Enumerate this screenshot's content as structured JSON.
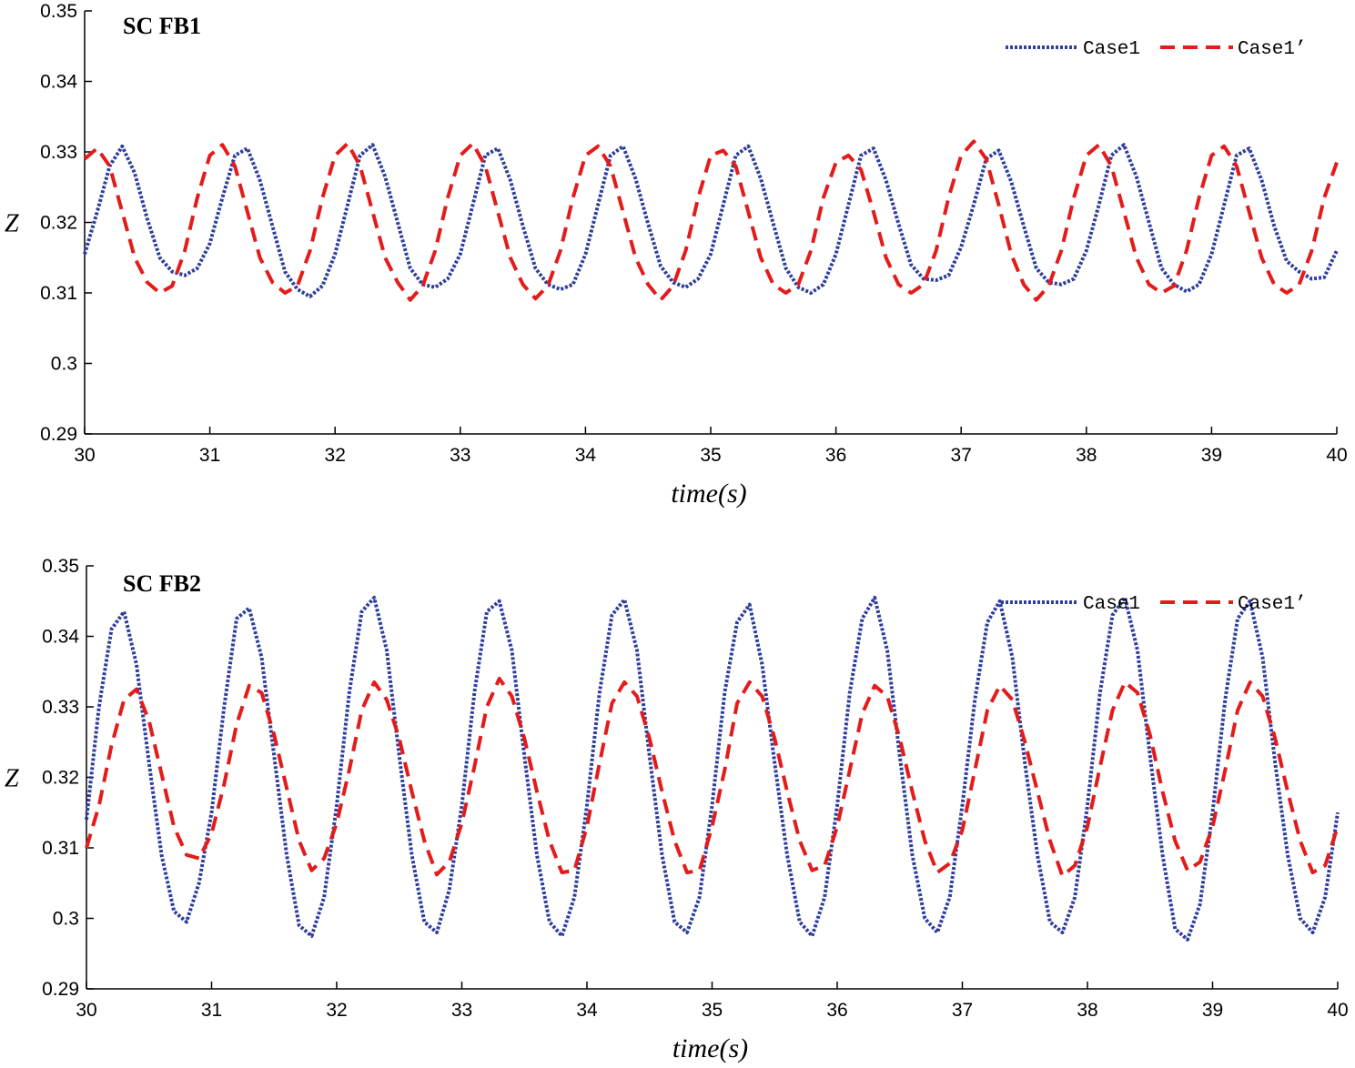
{
  "chart_data": [
    {
      "type": "line",
      "title": "SC FB1",
      "xlabel": "time(s)",
      "ylabel": "Z",
      "xlim": [
        30,
        40
      ],
      "ylim": [
        0.29,
        0.35
      ],
      "xticks": [
        "30",
        "31",
        "32",
        "33",
        "34",
        "35",
        "36",
        "37",
        "38",
        "39",
        "40"
      ],
      "yticks": [
        "0.29",
        "0.3",
        "0.31",
        "0.32",
        "0.33",
        "0.34",
        "0.35"
      ],
      "legend_position": "top-right",
      "series": [
        {
          "name": "Case1",
          "color": "#2e3e9c",
          "style": "dotted",
          "x": [
            30,
            30.1,
            30.2,
            30.3,
            30.4,
            30.5,
            30.6,
            30.7,
            30.8,
            30.9,
            31,
            31.1,
            31.2,
            31.3,
            31.4,
            31.5,
            31.6,
            31.7,
            31.8,
            31.9,
            32,
            32.1,
            32.2,
            32.3,
            32.4,
            32.5,
            32.6,
            32.7,
            32.8,
            32.9,
            33,
            33.1,
            33.2,
            33.3,
            33.4,
            33.5,
            33.6,
            33.7,
            33.8,
            33.9,
            34,
            34.1,
            34.2,
            34.3,
            34.4,
            34.5,
            34.6,
            34.7,
            34.8,
            34.9,
            35,
            35.1,
            35.2,
            35.3,
            35.4,
            35.5,
            35.6,
            35.7,
            35.8,
            35.9,
            36,
            36.1,
            36.2,
            36.3,
            36.4,
            36.5,
            36.6,
            36.7,
            36.8,
            36.9,
            37,
            37.1,
            37.2,
            37.3,
            37.4,
            37.5,
            37.6,
            37.7,
            37.8,
            37.9,
            38,
            38.1,
            38.2,
            38.3,
            38.4,
            38.5,
            38.6,
            38.7,
            38.8,
            38.9,
            39,
            39.1,
            39.2,
            39.3,
            39.4,
            39.5,
            39.6,
            39.7,
            39.8,
            39.9,
            40
          ],
          "y": [
            0.3155,
            0.3215,
            0.328,
            0.3308,
            0.327,
            0.3205,
            0.315,
            0.313,
            0.3125,
            0.3135,
            0.317,
            0.3235,
            0.3295,
            0.3305,
            0.326,
            0.3195,
            0.313,
            0.3105,
            0.3095,
            0.311,
            0.3155,
            0.3225,
            0.3295,
            0.331,
            0.3265,
            0.32,
            0.3135,
            0.3112,
            0.3108,
            0.312,
            0.3155,
            0.3225,
            0.3295,
            0.3305,
            0.326,
            0.3195,
            0.3135,
            0.3112,
            0.3105,
            0.3112,
            0.3155,
            0.3225,
            0.3295,
            0.3308,
            0.3262,
            0.3198,
            0.3138,
            0.3115,
            0.3108,
            0.312,
            0.3155,
            0.3225,
            0.3295,
            0.3308,
            0.3262,
            0.3198,
            0.3135,
            0.3108,
            0.31,
            0.3112,
            0.3155,
            0.3225,
            0.3295,
            0.3305,
            0.326,
            0.3198,
            0.314,
            0.312,
            0.3118,
            0.3125,
            0.3165,
            0.3225,
            0.329,
            0.3302,
            0.3258,
            0.3195,
            0.3135,
            0.3115,
            0.3112,
            0.312,
            0.316,
            0.3225,
            0.3295,
            0.331,
            0.3265,
            0.32,
            0.3135,
            0.3112,
            0.3102,
            0.3112,
            0.3155,
            0.3225,
            0.3295,
            0.3305,
            0.326,
            0.3195,
            0.3145,
            0.313,
            0.312,
            0.3122,
            0.316
          ]
        },
        {
          "name": "Case1’",
          "color": "#e41b1b",
          "style": "dashed",
          "x": [
            30,
            30.1,
            30.2,
            30.3,
            30.4,
            30.5,
            30.6,
            30.7,
            30.8,
            30.9,
            31,
            31.1,
            31.2,
            31.3,
            31.4,
            31.5,
            31.6,
            31.7,
            31.8,
            31.9,
            32,
            32.1,
            32.2,
            32.3,
            32.4,
            32.5,
            32.6,
            32.7,
            32.8,
            32.9,
            33,
            33.1,
            33.2,
            33.3,
            33.4,
            33.5,
            33.6,
            33.7,
            33.8,
            33.9,
            34,
            34.1,
            34.2,
            34.3,
            34.4,
            34.5,
            34.6,
            34.7,
            34.8,
            34.9,
            35,
            35.1,
            35.2,
            35.3,
            35.4,
            35.5,
            35.6,
            35.7,
            35.8,
            35.9,
            36,
            36.1,
            36.2,
            36.3,
            36.4,
            36.5,
            36.6,
            36.7,
            36.8,
            36.9,
            37,
            37.1,
            37.2,
            37.3,
            37.4,
            37.5,
            37.6,
            37.7,
            37.8,
            37.9,
            38,
            38.1,
            38.2,
            38.3,
            38.4,
            38.5,
            38.6,
            38.7,
            38.8,
            38.9,
            39,
            39.1,
            39.2,
            39.3,
            39.4,
            39.5,
            39.6,
            39.7,
            39.8,
            39.9,
            40
          ],
          "y": [
            0.329,
            0.3305,
            0.328,
            0.3215,
            0.315,
            0.3115,
            0.31,
            0.311,
            0.316,
            0.3235,
            0.3295,
            0.331,
            0.328,
            0.3215,
            0.315,
            0.3115,
            0.31,
            0.311,
            0.316,
            0.3235,
            0.3295,
            0.3312,
            0.328,
            0.3215,
            0.315,
            0.3115,
            0.309,
            0.311,
            0.316,
            0.3235,
            0.3295,
            0.3312,
            0.328,
            0.3215,
            0.315,
            0.3112,
            0.3092,
            0.311,
            0.316,
            0.3235,
            0.3295,
            0.3308,
            0.328,
            0.3215,
            0.315,
            0.3112,
            0.309,
            0.311,
            0.316,
            0.3235,
            0.3295,
            0.3302,
            0.328,
            0.3215,
            0.315,
            0.3112,
            0.31,
            0.3112,
            0.316,
            0.3235,
            0.3285,
            0.3295,
            0.3275,
            0.3215,
            0.315,
            0.3112,
            0.31,
            0.3112,
            0.316,
            0.3235,
            0.3295,
            0.3315,
            0.329,
            0.3225,
            0.3155,
            0.3112,
            0.309,
            0.311,
            0.316,
            0.3235,
            0.3295,
            0.331,
            0.328,
            0.3215,
            0.315,
            0.3112,
            0.31,
            0.311,
            0.316,
            0.3235,
            0.3295,
            0.3308,
            0.328,
            0.3215,
            0.315,
            0.3112,
            0.31,
            0.3112,
            0.316,
            0.3235,
            0.3285
          ]
        }
      ]
    },
    {
      "type": "line",
      "title": "SC FB2",
      "xlabel": "time(s)",
      "ylabel": "Z",
      "xlim": [
        30,
        40
      ],
      "ylim": [
        0.29,
        0.35
      ],
      "xticks": [
        "30",
        "31",
        "32",
        "33",
        "34",
        "35",
        "36",
        "37",
        "38",
        "39",
        "40"
      ],
      "yticks": [
        "0.29",
        "0.3",
        "0.31",
        "0.32",
        "0.33",
        "0.34",
        "0.35"
      ],
      "legend_position": "top-right",
      "series": [
        {
          "name": "Case1",
          "color": "#2e3e9c",
          "style": "dotted",
          "x": [
            30,
            30.1,
            30.2,
            30.3,
            30.4,
            30.5,
            30.6,
            30.7,
            30.8,
            30.9,
            31,
            31.1,
            31.2,
            31.3,
            31.4,
            31.5,
            31.6,
            31.7,
            31.8,
            31.9,
            32,
            32.1,
            32.2,
            32.3,
            32.4,
            32.5,
            32.6,
            32.7,
            32.8,
            32.9,
            33,
            33.1,
            33.2,
            33.3,
            33.4,
            33.5,
            33.6,
            33.7,
            33.8,
            33.9,
            34,
            34.1,
            34.2,
            34.3,
            34.4,
            34.5,
            34.6,
            34.7,
            34.8,
            34.9,
            35,
            35.1,
            35.2,
            35.3,
            35.4,
            35.5,
            35.6,
            35.7,
            35.8,
            35.9,
            36,
            36.1,
            36.2,
            36.3,
            36.4,
            36.5,
            36.6,
            36.7,
            36.8,
            36.9,
            37,
            37.1,
            37.2,
            37.3,
            37.4,
            37.5,
            37.6,
            37.7,
            37.8,
            37.9,
            38,
            38.1,
            38.2,
            38.3,
            38.4,
            38.5,
            38.6,
            38.7,
            38.8,
            38.9,
            39,
            39.1,
            39.2,
            39.3,
            39.4,
            39.5,
            39.6,
            39.7,
            39.8,
            39.9,
            40
          ],
          "y": [
            0.314,
            0.33,
            0.341,
            0.3435,
            0.336,
            0.322,
            0.309,
            0.301,
            0.2995,
            0.305,
            0.315,
            0.33,
            0.3425,
            0.344,
            0.337,
            0.323,
            0.309,
            0.299,
            0.2975,
            0.303,
            0.316,
            0.332,
            0.3435,
            0.3455,
            0.338,
            0.323,
            0.309,
            0.2995,
            0.298,
            0.304,
            0.316,
            0.332,
            0.3435,
            0.345,
            0.338,
            0.323,
            0.309,
            0.2995,
            0.2975,
            0.303,
            0.316,
            0.332,
            0.343,
            0.3452,
            0.338,
            0.323,
            0.309,
            0.2995,
            0.298,
            0.303,
            0.316,
            0.332,
            0.342,
            0.3445,
            0.336,
            0.322,
            0.309,
            0.2995,
            0.2975,
            0.303,
            0.316,
            0.332,
            0.3425,
            0.3455,
            0.338,
            0.323,
            0.309,
            0.3,
            0.298,
            0.303,
            0.316,
            0.331,
            0.342,
            0.345,
            0.337,
            0.322,
            0.309,
            0.2995,
            0.298,
            0.303,
            0.316,
            0.332,
            0.343,
            0.3455,
            0.338,
            0.323,
            0.309,
            0.2985,
            0.297,
            0.302,
            0.315,
            0.331,
            0.3425,
            0.345,
            0.337,
            0.322,
            0.309,
            0.3,
            0.298,
            0.303,
            0.315
          ]
        },
        {
          "name": "Case1’",
          "color": "#e41b1b",
          "style": "dashed",
          "x": [
            30,
            30.1,
            30.2,
            30.3,
            30.4,
            30.5,
            30.6,
            30.7,
            30.8,
            30.9,
            31,
            31.1,
            31.2,
            31.3,
            31.4,
            31.5,
            31.6,
            31.7,
            31.8,
            31.9,
            32,
            32.1,
            32.2,
            32.3,
            32.4,
            32.5,
            32.6,
            32.7,
            32.8,
            32.9,
            33,
            33.1,
            33.2,
            33.3,
            33.4,
            33.5,
            33.6,
            33.7,
            33.8,
            33.9,
            34,
            34.1,
            34.2,
            34.3,
            34.4,
            34.5,
            34.6,
            34.7,
            34.8,
            34.9,
            35,
            35.1,
            35.2,
            35.3,
            35.4,
            35.5,
            35.6,
            35.7,
            35.8,
            35.9,
            36,
            36.1,
            36.2,
            36.3,
            36.4,
            36.5,
            36.6,
            36.7,
            36.8,
            36.9,
            37,
            37.1,
            37.2,
            37.3,
            37.4,
            37.5,
            37.6,
            37.7,
            37.8,
            37.9,
            38,
            38.1,
            38.2,
            38.3,
            38.4,
            38.5,
            38.6,
            38.7,
            38.8,
            38.9,
            39,
            39.1,
            39.2,
            39.3,
            39.4,
            39.5,
            39.6,
            39.7,
            39.8,
            39.9,
            40
          ],
          "y": [
            0.31,
            0.316,
            0.3245,
            0.331,
            0.3325,
            0.328,
            0.3205,
            0.313,
            0.309,
            0.3085,
            0.312,
            0.319,
            0.3275,
            0.333,
            0.332,
            0.326,
            0.3185,
            0.311,
            0.3068,
            0.3085,
            0.3135,
            0.321,
            0.3295,
            0.3335,
            0.331,
            0.3255,
            0.318,
            0.311,
            0.3062,
            0.308,
            0.3135,
            0.3215,
            0.33,
            0.334,
            0.3315,
            0.3255,
            0.318,
            0.311,
            0.3065,
            0.3068,
            0.313,
            0.322,
            0.3305,
            0.3335,
            0.3315,
            0.3255,
            0.318,
            0.311,
            0.3065,
            0.3068,
            0.313,
            0.321,
            0.3305,
            0.3335,
            0.3315,
            0.3255,
            0.318,
            0.311,
            0.3068,
            0.3075,
            0.313,
            0.321,
            0.329,
            0.333,
            0.3315,
            0.3255,
            0.318,
            0.311,
            0.3065,
            0.3078,
            0.3125,
            0.321,
            0.3295,
            0.333,
            0.331,
            0.325,
            0.318,
            0.311,
            0.306,
            0.3075,
            0.313,
            0.3215,
            0.3295,
            0.3335,
            0.332,
            0.326,
            0.318,
            0.311,
            0.3068,
            0.308,
            0.313,
            0.321,
            0.3295,
            0.3335,
            0.3315,
            0.3255,
            0.318,
            0.311,
            0.3065,
            0.3075,
            0.313
          ]
        }
      ]
    }
  ]
}
